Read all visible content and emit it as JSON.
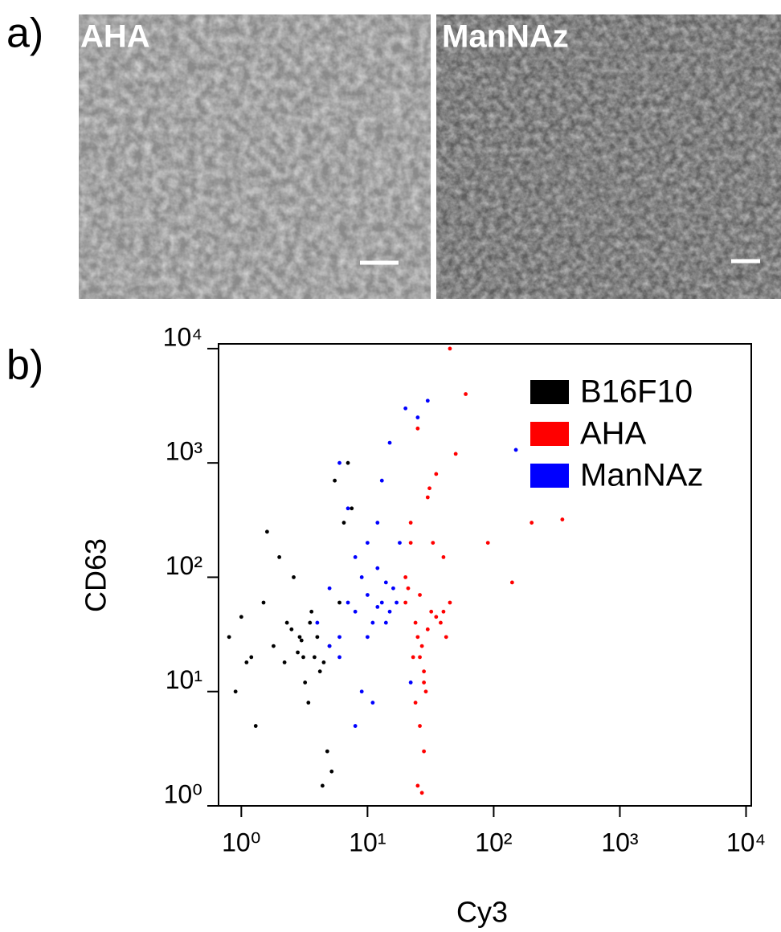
{
  "panel_a": {
    "label": "a)",
    "images": [
      {
        "label": "AHA"
      },
      {
        "label": "ManNAz"
      }
    ]
  },
  "chart_data": {
    "type": "scatter",
    "panel_label": "b)",
    "x_label": "Cy3",
    "y_label": "CD63",
    "log_x": true,
    "log_y": true,
    "legend": "upper right",
    "xlim": [
      0.66,
      11000
    ],
    "ylim": [
      1,
      11000
    ],
    "xticks": [
      {
        "value": 1,
        "label": "10⁰"
      },
      {
        "value": 10,
        "label": "10¹"
      },
      {
        "value": 100,
        "label": "10²"
      },
      {
        "value": 1000,
        "label": "10³"
      },
      {
        "value": 10000,
        "label": "10⁴"
      }
    ],
    "yticks": [
      {
        "value": 1,
        "label": "10⁰"
      },
      {
        "value": 10,
        "label": "10¹"
      },
      {
        "value": 100,
        "label": "10²"
      },
      {
        "value": 1000,
        "label": "10³"
      },
      {
        "value": 10000,
        "label": "10⁴"
      }
    ],
    "series": [
      {
        "name": "B16F10",
        "color": "#000000",
        "x": [
          0.8,
          1.0,
          1.2,
          1.5,
          1.8,
          2.0,
          2.2,
          2.5,
          2.8,
          3.0,
          3.2,
          3.5,
          3.8,
          4.0,
          4.5,
          5.0,
          5.5,
          6.0,
          7.0,
          1.3,
          2.6,
          3.4,
          4.2,
          0.9,
          1.6,
          2.3,
          3.1,
          4.8,
          6.5,
          5.2,
          2.9,
          3.6,
          1.1,
          7.5,
          4.4
        ],
        "values": [
          30,
          45,
          20,
          60,
          25,
          150,
          18,
          35,
          22,
          28,
          12,
          40,
          20,
          30,
          18,
          25,
          700,
          60,
          1000,
          5,
          100,
          8,
          15,
          10,
          250,
          40,
          20,
          3,
          300,
          2,
          30,
          50,
          18,
          400,
          1.5
        ]
      },
      {
        "name": "AHA",
        "color": "#ff0000",
        "x": [
          20,
          22,
          24,
          25,
          26,
          27,
          28,
          30,
          32,
          35,
          38,
          40,
          45,
          22,
          24,
          26,
          28,
          25,
          27,
          30,
          35,
          40,
          50,
          60,
          20,
          23,
          29,
          33,
          42,
          26,
          28,
          31,
          90,
          200,
          350,
          140,
          25,
          45,
          21
        ],
        "values": [
          100,
          200,
          40,
          30,
          20,
          25,
          15,
          35,
          50,
          45,
          40,
          50,
          60,
          300,
          8,
          5,
          3,
          1.5,
          1.3,
          500,
          800,
          150,
          1200,
          4000,
          60,
          20,
          10,
          200,
          30,
          70,
          12,
          600,
          200,
          300,
          320,
          90,
          2000,
          10000,
          80
        ]
      },
      {
        "name": "ManNAz",
        "color": "#0000ff",
        "x": [
          4,
          5,
          6,
          7,
          8,
          9,
          10,
          11,
          12,
          13,
          14,
          15,
          16,
          18,
          6,
          8,
          10,
          12,
          9,
          7,
          11,
          13,
          5,
          15,
          17,
          10,
          8,
          14,
          6,
          12,
          20,
          25,
          30,
          22,
          150
        ],
        "values": [
          40,
          80,
          30,
          60,
          50,
          100,
          70,
          40,
          120,
          60,
          90,
          50,
          80,
          200,
          20,
          150,
          30,
          300,
          10,
          400,
          8,
          700,
          25,
          1500,
          60,
          200,
          5,
          40,
          1000,
          55,
          3000,
          2500,
          3500,
          12,
          1300
        ]
      }
    ]
  }
}
